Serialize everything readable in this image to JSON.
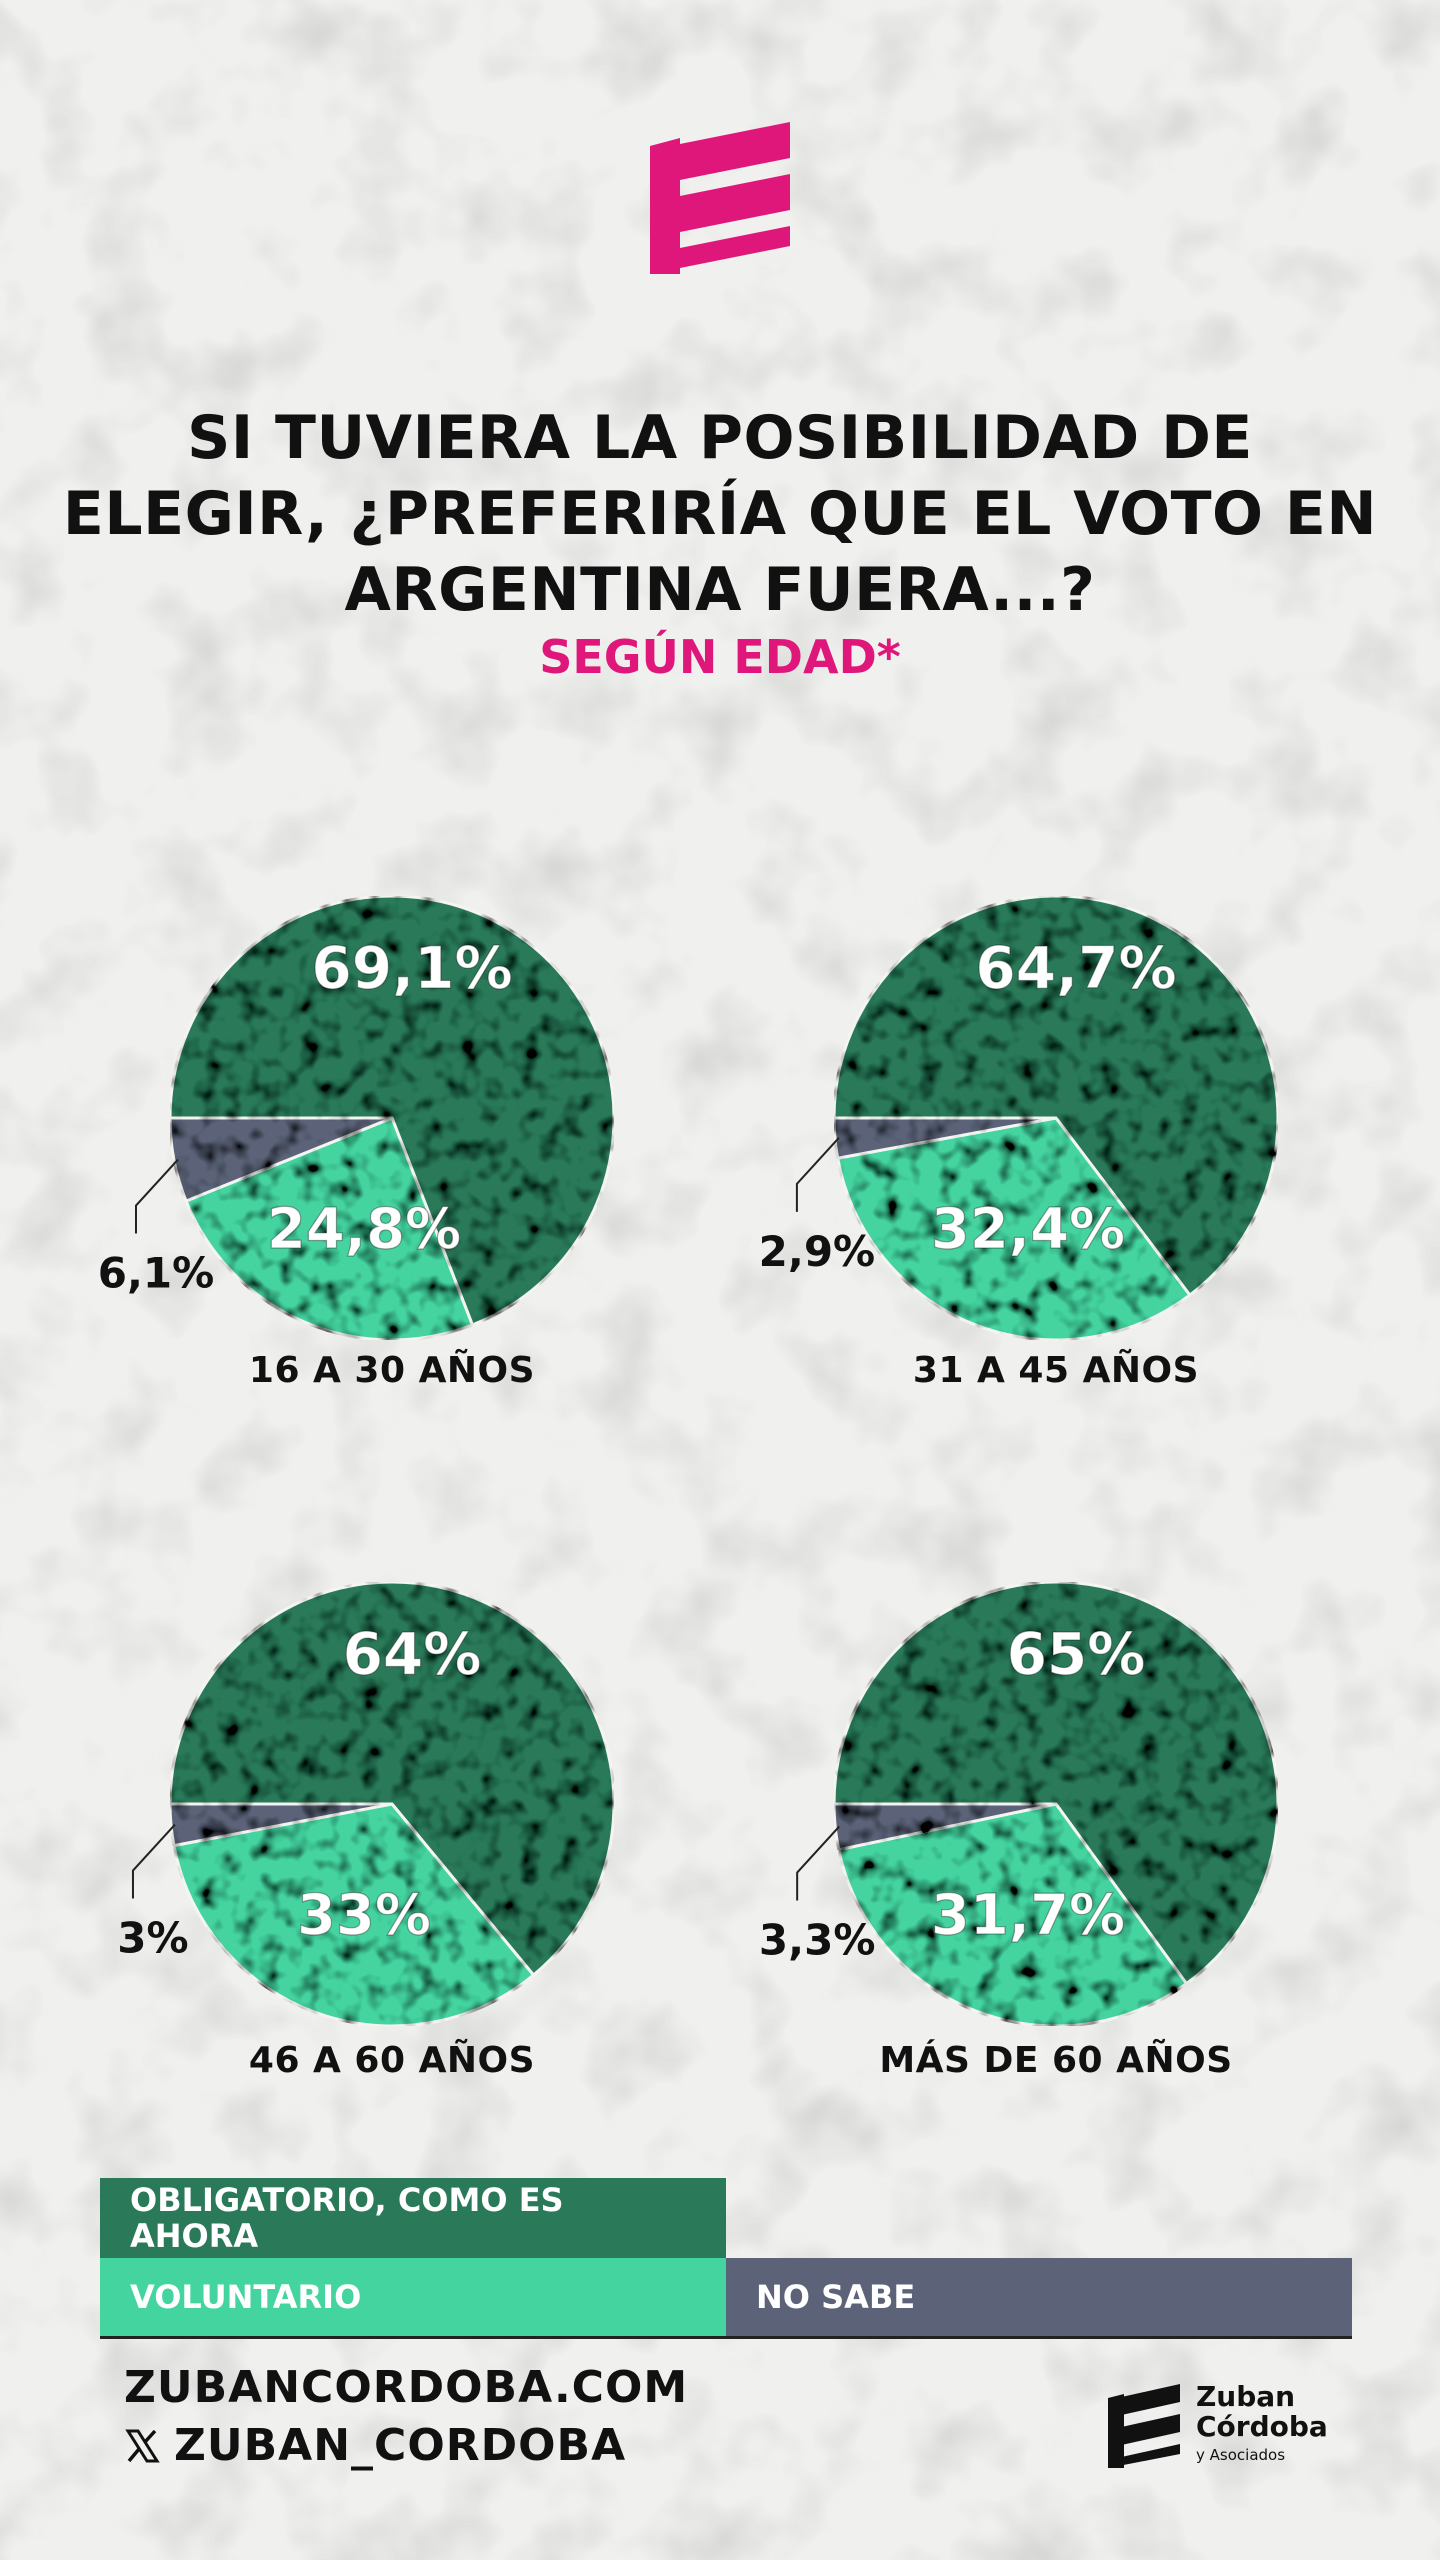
{
  "header": {
    "title_lines": [
      "SI TUVIERA LA POSIBILIDAD DE",
      "ELEGIR, ¿PREFERIRÍA QUE EL VOTO EN",
      "ARGENTINA FUERA...?"
    ],
    "subtitle": "SEGÚN EDAD*"
  },
  "colors": {
    "obligatorio": "#2a7a5a",
    "voluntario": "#44d4a0",
    "no_sabe": "#5c6378",
    "accent": "#e0177b"
  },
  "chart_data": [
    {
      "type": "pie",
      "caption": "16 A 30 AÑOS",
      "slices": [
        {
          "key": "obligatorio",
          "value": 69.1,
          "label": "69,1%"
        },
        {
          "key": "voluntario",
          "value": 24.8,
          "label": "24,8%"
        },
        {
          "key": "no_sabe",
          "value": 6.1,
          "label": "6,1%"
        }
      ]
    },
    {
      "type": "pie",
      "caption": "31 A 45 AÑOS",
      "slices": [
        {
          "key": "obligatorio",
          "value": 64.7,
          "label": "64,7%"
        },
        {
          "key": "voluntario",
          "value": 32.4,
          "label": "32,4%"
        },
        {
          "key": "no_sabe",
          "value": 2.9,
          "label": "2,9%"
        }
      ]
    },
    {
      "type": "pie",
      "caption": "46 A 60 AÑOS",
      "slices": [
        {
          "key": "obligatorio",
          "value": 64,
          "label": "64%"
        },
        {
          "key": "voluntario",
          "value": 33,
          "label": "33%"
        },
        {
          "key": "no_sabe",
          "value": 3,
          "label": "3%"
        }
      ]
    },
    {
      "type": "pie",
      "caption": "MÁS DE 60 AÑOS",
      "slices": [
        {
          "key": "obligatorio",
          "value": 65,
          "label": "65%"
        },
        {
          "key": "voluntario",
          "value": 31.7,
          "label": "31,7%"
        },
        {
          "key": "no_sabe",
          "value": 3.3,
          "label": "3,3%"
        }
      ]
    }
  ],
  "legend": {
    "obligatorio": "OBLIGATORIO, COMO ES AHORA",
    "voluntario": "VOLUNTARIO",
    "no_sabe": "NO SABE"
  },
  "footer": {
    "website": "ZUBANCORDOBA.COM",
    "social": "ZUBAN_CORDOBA",
    "social_icon": "x-icon",
    "brand_name_line1": "Zuban",
    "brand_name_line2": "Córdoba",
    "brand_sub": "y Asociados"
  }
}
